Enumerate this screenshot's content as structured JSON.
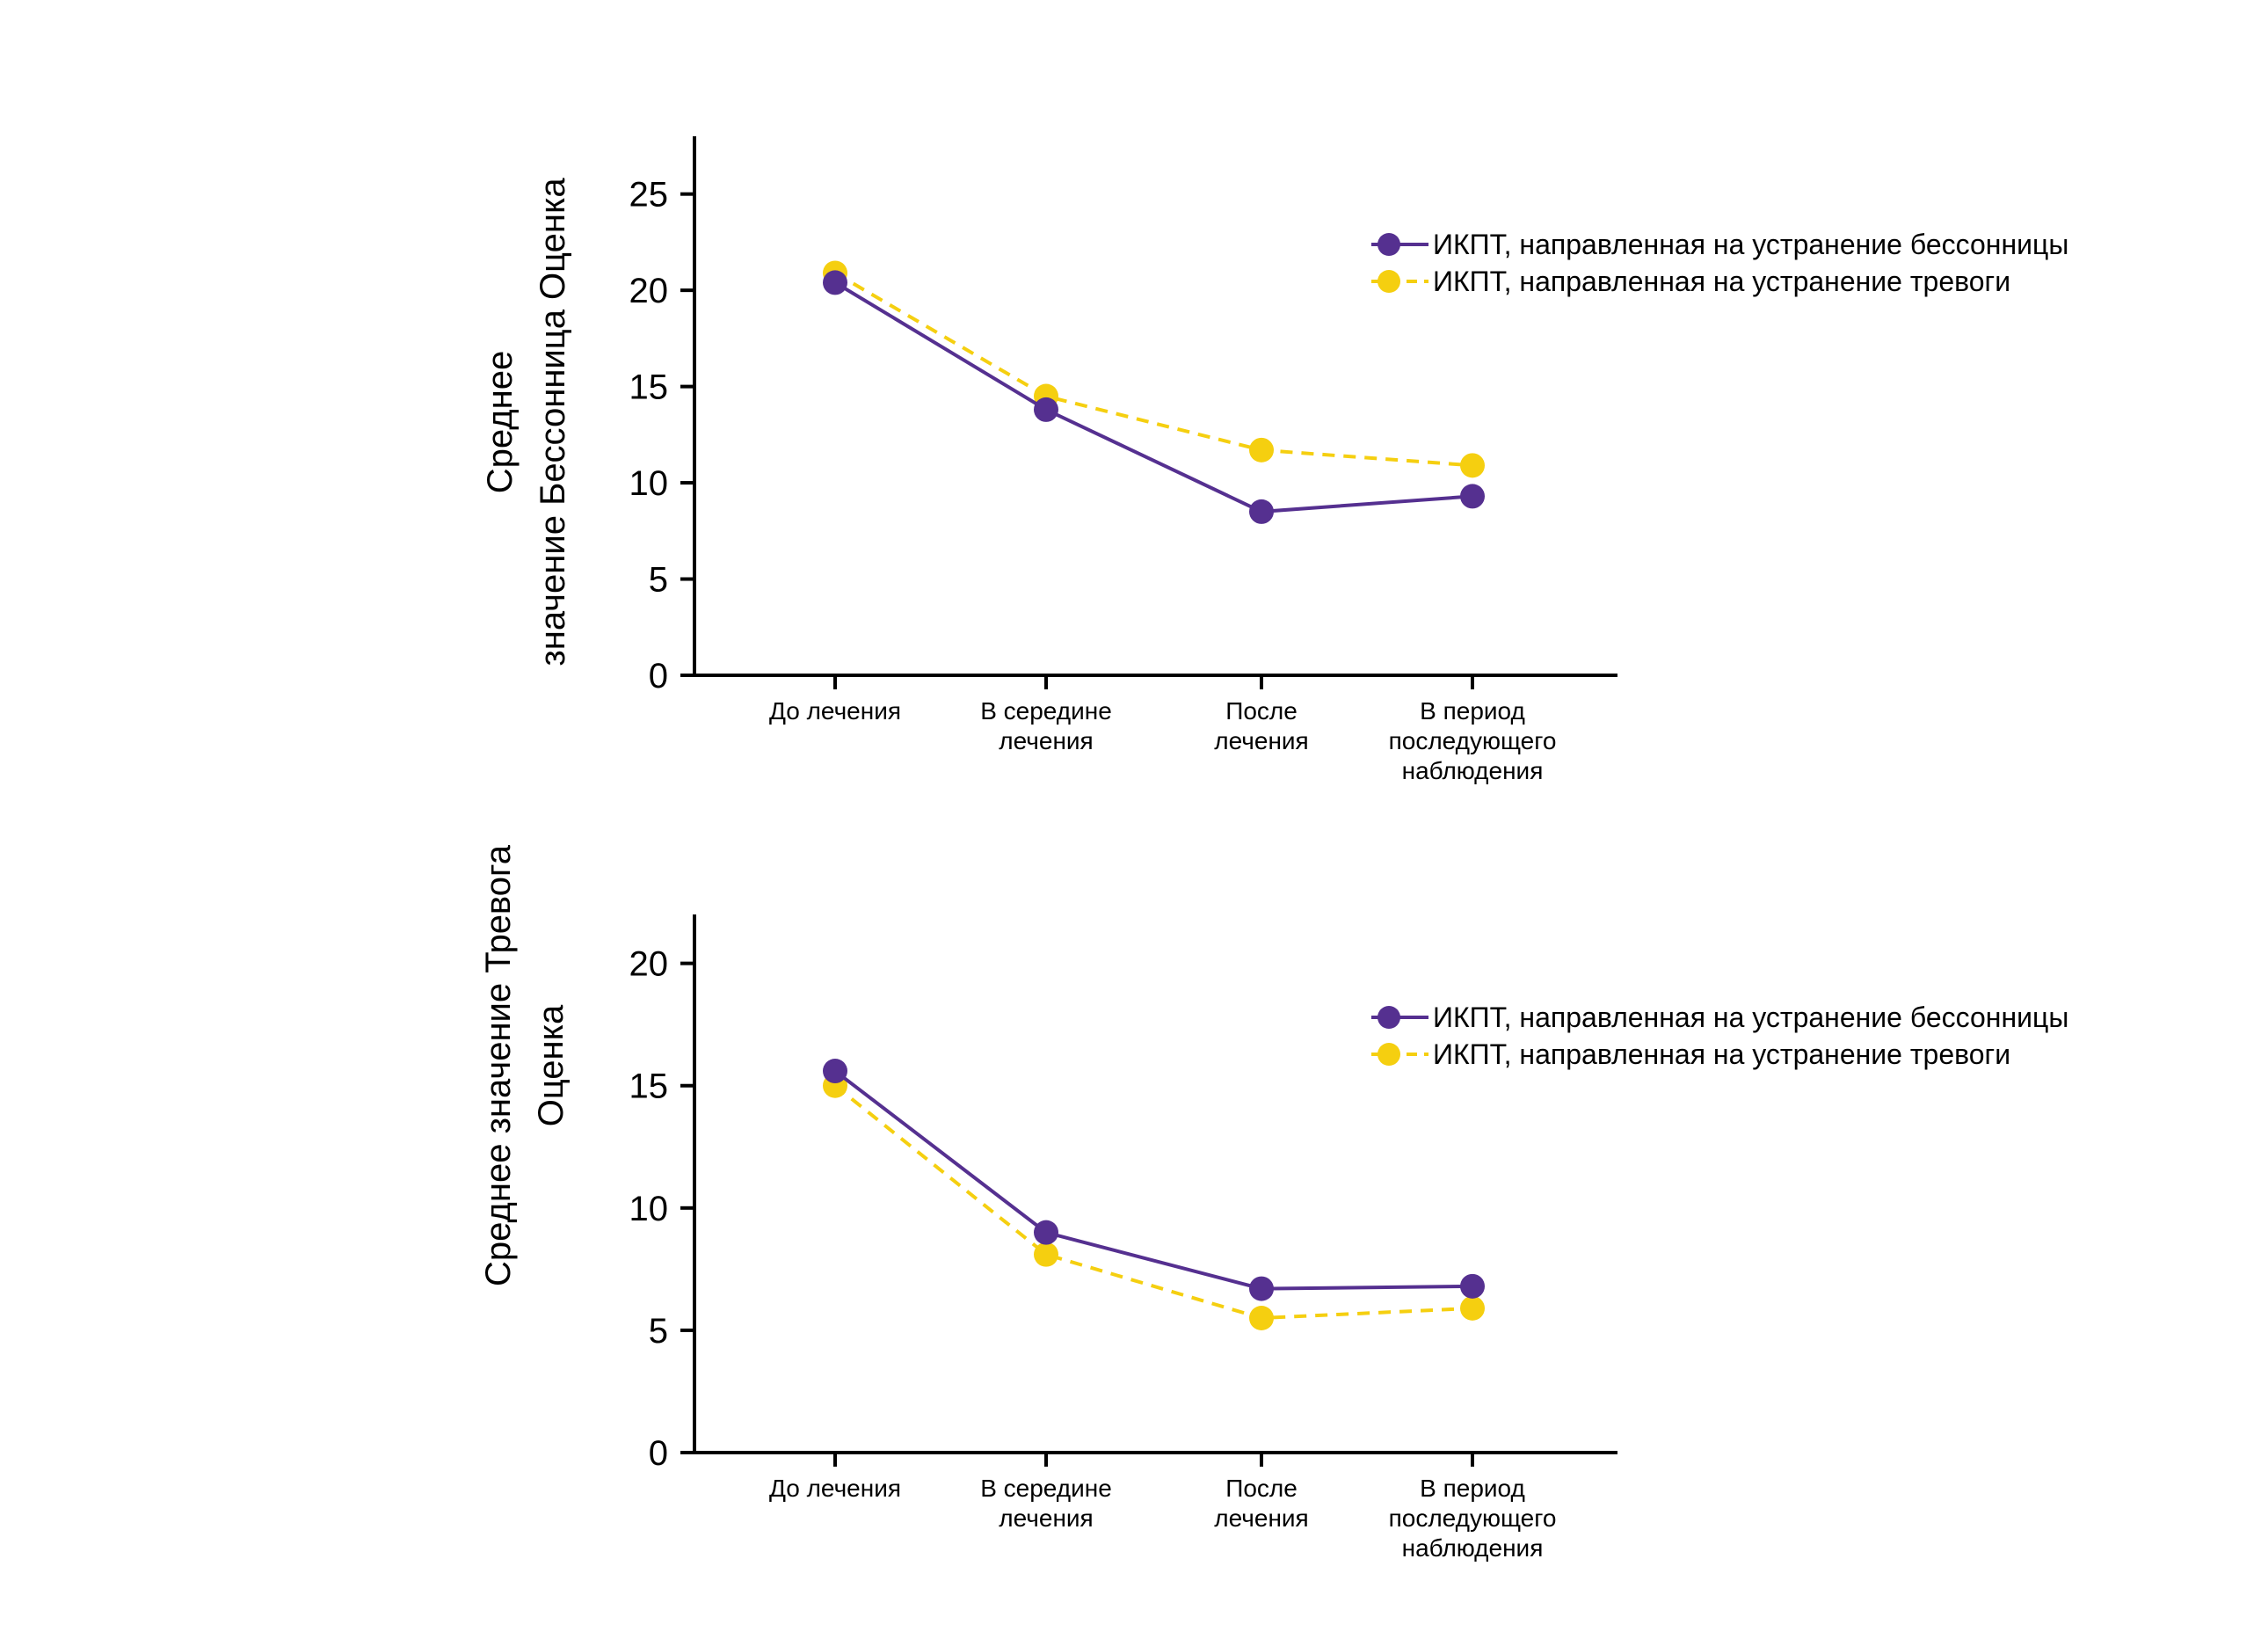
{
  "colors": {
    "insomnia": "#553090",
    "anxiety": "#F5CF10"
  },
  "chart_data": [
    {
      "type": "line",
      "categories": [
        [
          "До лечения"
        ],
        [
          "В середине",
          "лечения"
        ],
        [
          "После",
          "лечения"
        ],
        [
          "В период",
          "последующего",
          "наблюдения"
        ]
      ],
      "series": [
        {
          "name": "ИКПТ, направленная на устранение бессонницы",
          "values": [
            20.4,
            13.8,
            8.5,
            9.3
          ],
          "color": "#553090",
          "line_style": "solid"
        },
        {
          "name": "ИКПТ, направленная на устранение тревоги",
          "values": [
            20.9,
            14.5,
            11.7,
            10.9
          ],
          "color": "#F5CF10",
          "line_style": "dashed"
        }
      ],
      "title": "",
      "xlabel": "",
      "ylabel": [
        "Среднее",
        "значение Бессонница Оценка"
      ],
      "ylim": [
        0,
        28
      ],
      "yticks": [
        0,
        5,
        10,
        15,
        20,
        25
      ],
      "grid": false,
      "legend": "top-right"
    },
    {
      "type": "line",
      "categories": [
        [
          "До лечения"
        ],
        [
          "В середине",
          "лечения"
        ],
        [
          "После",
          "лечения"
        ],
        [
          "В период",
          "последующего",
          "наблюдения"
        ]
      ],
      "series": [
        {
          "name": "ИКПТ, направленная на устранение бессонницы",
          "values": [
            15.6,
            9.0,
            6.7,
            6.8
          ],
          "color": "#553090",
          "line_style": "solid"
        },
        {
          "name": "ИКПТ, направленная на устранение тревоги",
          "values": [
            15.0,
            8.1,
            5.5,
            5.9
          ],
          "color": "#F5CF10",
          "line_style": "dashed"
        }
      ],
      "title": "",
      "xlabel": "",
      "ylabel": [
        "Среднее значение Тревога",
        "Оценка"
      ],
      "ylim": [
        0,
        22
      ],
      "yticks": [
        0,
        5,
        10,
        15,
        20
      ],
      "grid": false,
      "legend": "top-right"
    }
  ]
}
